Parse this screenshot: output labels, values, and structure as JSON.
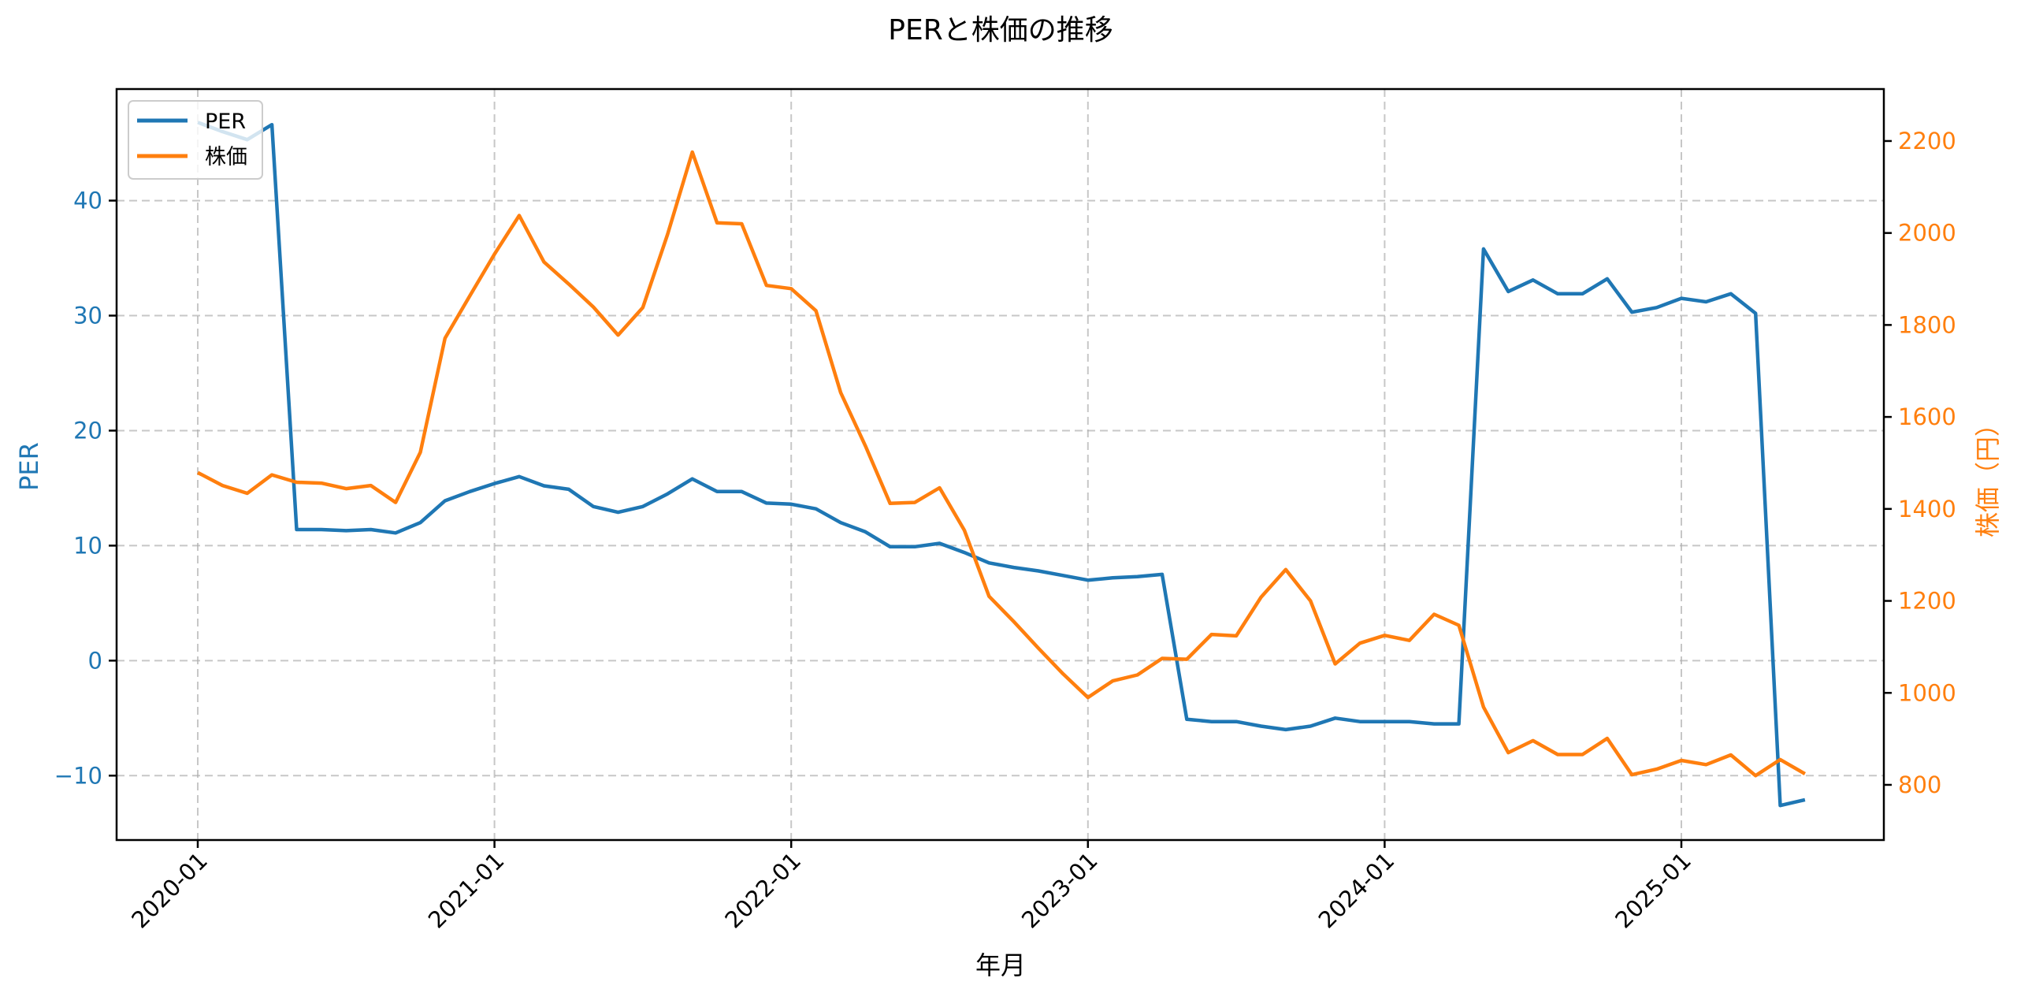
{
  "chart_data": {
    "type": "line",
    "title": "PERと株価の推移",
    "xlabel": "年月",
    "ylabel_left": "PER",
    "ylabel_right": "株価（円）",
    "x_tick_labels": [
      "2020-01",
      "2021-01",
      "2022-01",
      "2023-01",
      "2024-01",
      "2025-01"
    ],
    "y_left_ticks": [
      -10,
      0,
      10,
      20,
      30,
      40
    ],
    "y_right_ticks": [
      800,
      1000,
      1200,
      1400,
      1600,
      1800,
      2000,
      2200
    ],
    "ylim_left": [
      -15.6,
      49.7
    ],
    "ylim_right": [
      680,
      2313
    ],
    "grid": true,
    "legend_position": "upper left",
    "legend": [
      "PER",
      "株価"
    ],
    "colors": {
      "PER": "#1f77b4",
      "株価": "#ff7f0e"
    },
    "x": [
      "2020-01",
      "2020-02",
      "2020-03",
      "2020-04",
      "2020-05",
      "2020-06",
      "2020-07",
      "2020-08",
      "2020-09",
      "2020-10",
      "2020-11",
      "2020-12",
      "2021-01",
      "2021-02",
      "2021-03",
      "2021-04",
      "2021-05",
      "2021-06",
      "2021-07",
      "2021-08",
      "2021-09",
      "2021-10",
      "2021-11",
      "2021-12",
      "2022-01",
      "2022-02",
      "2022-03",
      "2022-04",
      "2022-05",
      "2022-06",
      "2022-07",
      "2022-08",
      "2022-09",
      "2022-10",
      "2022-11",
      "2022-12",
      "2023-01",
      "2023-02",
      "2023-03",
      "2023-04",
      "2023-05",
      "2023-06",
      "2023-07",
      "2023-08",
      "2023-09",
      "2023-10",
      "2023-11",
      "2023-12",
      "2024-01",
      "2024-02",
      "2024-03",
      "2024-04",
      "2024-05",
      "2024-06",
      "2024-07",
      "2024-08",
      "2024-09",
      "2024-10",
      "2024-11",
      "2024-12",
      "2025-01",
      "2025-02",
      "2025-03",
      "2025-04",
      "2025-05",
      "2025-06"
    ],
    "series": [
      {
        "name": "PER",
        "axis": "left",
        "values": [
          46.8,
          46.0,
          45.3,
          46.6,
          11.4,
          11.4,
          11.3,
          11.4,
          11.1,
          12.0,
          13.9,
          14.7,
          15.4,
          16.0,
          15.2,
          14.9,
          13.4,
          12.9,
          13.4,
          14.5,
          15.8,
          14.7,
          14.7,
          13.7,
          13.6,
          13.2,
          12.0,
          11.2,
          9.9,
          9.9,
          10.2,
          9.4,
          8.5,
          8.1,
          7.8,
          7.4,
          7.0,
          7.2,
          7.3,
          7.5,
          -5.1,
          -5.3,
          -5.3,
          -5.7,
          -6.0,
          -5.7,
          -5.0,
          -5.3,
          -5.3,
          -5.3,
          -5.5,
          -5.5,
          35.8,
          32.1,
          33.1,
          31.9,
          31.9,
          33.2,
          30.3,
          30.7,
          31.5,
          31.2,
          31.9,
          30.2,
          -12.6,
          -12.1
        ]
      },
      {
        "name": "株価",
        "axis": "right",
        "values": [
          1479,
          1451,
          1434,
          1474,
          1458,
          1456,
          1444,
          1451,
          1414,
          1523,
          1771,
          1863,
          1954,
          2038,
          1937,
          1889,
          1839,
          1778,
          1838,
          1997,
          2176,
          2022,
          2020,
          1886,
          1879,
          1831,
          1653,
          1537,
          1412,
          1414,
          1446,
          1354,
          1210,
          1155,
          1097,
          1041,
          990,
          1026,
          1039,
          1075,
          1073,
          1127,
          1124,
          1208,
          1268,
          1200,
          1063,
          1108,
          1125,
          1114,
          1171,
          1147,
          969,
          870,
          896,
          866,
          866,
          901,
          822,
          834,
          853,
          844,
          865,
          820,
          855,
          824
        ]
      }
    ]
  }
}
